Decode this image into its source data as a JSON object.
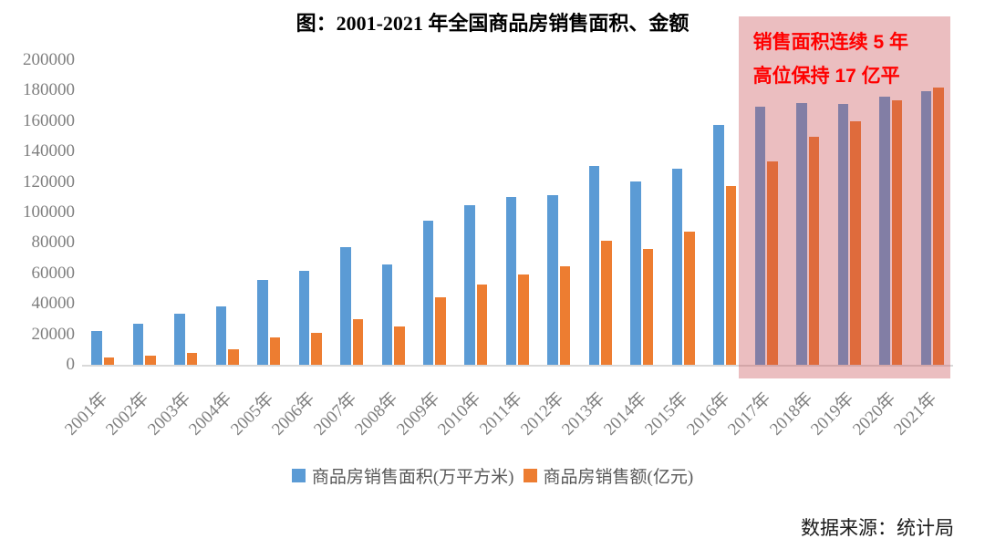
{
  "title": "图：2001-2021 年全国商品房销售面积、金额",
  "annotation": {
    "line1": "销售面积连续 5 年",
    "line2": "高位保持 17 亿平",
    "text_color": "#ff0000"
  },
  "source_note": "数据来源：统计局",
  "legend": [
    {
      "label": "商品房销售面积(万平方米)",
      "color": "#5B9BD5"
    },
    {
      "label": "商品房销售额(亿元)",
      "color": "#ED7D31"
    }
  ],
  "colors": {
    "area_series": "#5B9BD5",
    "amount_series": "#ED7D31",
    "axis_line": "#D9D9D9",
    "tick_labels": "#7F7F7F",
    "legend_text": "#595959",
    "highlight_overlay": "rgba(200,75,80,0.36)",
    "annotation_text": "#FF0000"
  },
  "chart_data": {
    "type": "bar",
    "title": "图：2001-2021 年全国商品房销售面积、金额",
    "categories": [
      "2001年",
      "2002年",
      "2003年",
      "2004年",
      "2005年",
      "2006年",
      "2007年",
      "2008年",
      "2009年",
      "2010年",
      "2011年",
      "2012年",
      "2013年",
      "2014年",
      "2015年",
      "2016年",
      "2017年",
      "2018年",
      "2019年",
      "2020年",
      "2021年"
    ],
    "series": [
      {
        "name": "商品房销售面积(万平方米)",
        "color": "#5B9BD5",
        "values": [
          22412,
          26808,
          33718,
          38232,
          55486,
          61857,
          77355,
          65970,
          94755,
          104765,
          109946,
          111304,
          130551,
          120649,
          128495,
          157349,
          169408,
          171654,
          171558,
          176086,
          179433
        ]
      },
      {
        "name": "商品房销售额(亿元)",
        "color": "#ED7D31",
        "values": [
          4863,
          6032,
          7956,
          10376,
          18080,
          20826,
          29889,
          25068,
          44355,
          52721,
          59119,
          64456,
          81428,
          76292,
          87281,
          117627,
          133701,
          149973,
          159725,
          173613,
          181930
        ]
      }
    ],
    "xlabel": "",
    "ylabel": "",
    "ylim": [
      0,
      200000
    ],
    "ytick_step": 20000,
    "grid": false,
    "legend_position": "bottom",
    "highlight": {
      "from": "2017年",
      "to": "2021年",
      "overlay_color": "rgba(200,75,80,0.36)",
      "label": "销售面积连续 5 年高位保持 17 亿平"
    }
  }
}
